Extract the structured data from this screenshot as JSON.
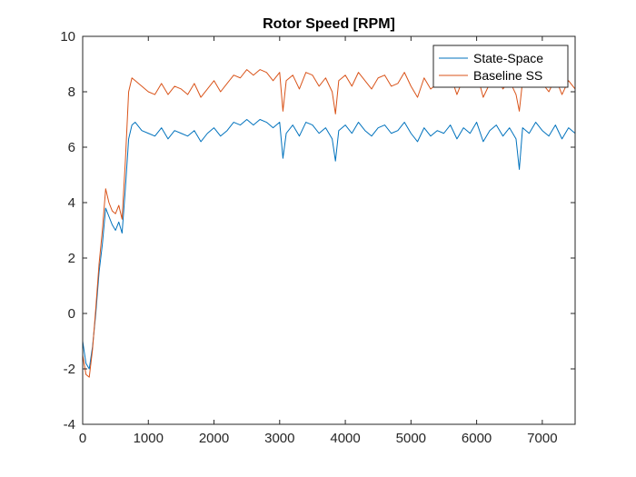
{
  "chart_data": {
    "type": "line",
    "title": "Rotor Speed [RPM]",
    "xlabel": "",
    "ylabel": "",
    "xlim": [
      0,
      7500
    ],
    "ylim": [
      -4,
      10
    ],
    "xticks": [
      0,
      1000,
      2000,
      3000,
      4000,
      5000,
      6000,
      7000
    ],
    "yticks": [
      -4,
      -2,
      0,
      2,
      4,
      6,
      8,
      10
    ],
    "grid": false,
    "legend_position": "top-right",
    "series": [
      {
        "name": "State-Space",
        "color": "#0072BD",
        "x": [
          0,
          50,
          100,
          150,
          200,
          250,
          300,
          350,
          400,
          450,
          500,
          550,
          600,
          650,
          700,
          750,
          800,
          900,
          1000,
          1100,
          1200,
          1300,
          1400,
          1500,
          1600,
          1700,
          1800,
          1900,
          2000,
          2100,
          2200,
          2300,
          2400,
          2500,
          2600,
          2700,
          2800,
          2900,
          3000,
          3050,
          3100,
          3200,
          3300,
          3400,
          3500,
          3600,
          3700,
          3800,
          3850,
          3900,
          4000,
          4100,
          4200,
          4300,
          4400,
          4500,
          4600,
          4700,
          4800,
          4900,
          5000,
          5100,
          5200,
          5300,
          5400,
          5500,
          5600,
          5700,
          5800,
          5900,
          6000,
          6100,
          6200,
          6300,
          6400,
          6500,
          6600,
          6650,
          6700,
          6800,
          6900,
          7000,
          7100,
          7200,
          7300,
          7400,
          7500
        ],
        "y": [
          -1.0,
          -1.8,
          -2.0,
          -1.2,
          0.0,
          1.5,
          2.5,
          3.8,
          3.5,
          3.2,
          3.0,
          3.3,
          2.9,
          4.5,
          6.3,
          6.8,
          6.9,
          6.6,
          6.5,
          6.4,
          6.7,
          6.3,
          6.6,
          6.5,
          6.4,
          6.6,
          6.2,
          6.5,
          6.7,
          6.4,
          6.6,
          6.9,
          6.8,
          7.0,
          6.8,
          7.0,
          6.9,
          6.7,
          6.9,
          5.6,
          6.5,
          6.8,
          6.4,
          6.9,
          6.8,
          6.5,
          6.7,
          6.3,
          5.5,
          6.6,
          6.8,
          6.5,
          6.9,
          6.6,
          6.4,
          6.7,
          6.8,
          6.5,
          6.6,
          6.9,
          6.5,
          6.2,
          6.7,
          6.4,
          6.6,
          6.5,
          6.8,
          6.3,
          6.7,
          6.5,
          6.9,
          6.2,
          6.6,
          6.8,
          6.4,
          6.7,
          6.3,
          5.2,
          6.7,
          6.5,
          6.9,
          6.6,
          6.4,
          6.8,
          6.3,
          6.7,
          6.5
        ]
      },
      {
        "name": "Baseline SS",
        "color": "#D95319",
        "x": [
          0,
          50,
          100,
          150,
          200,
          250,
          300,
          350,
          400,
          450,
          500,
          550,
          600,
          650,
          700,
          750,
          800,
          900,
          1000,
          1100,
          1200,
          1300,
          1400,
          1500,
          1600,
          1700,
          1800,
          1900,
          2000,
          2100,
          2200,
          2300,
          2400,
          2500,
          2600,
          2700,
          2800,
          2900,
          3000,
          3050,
          3100,
          3200,
          3300,
          3400,
          3500,
          3600,
          3700,
          3800,
          3850,
          3900,
          4000,
          4100,
          4200,
          4300,
          4400,
          4500,
          4600,
          4700,
          4800,
          4900,
          5000,
          5100,
          5200,
          5300,
          5400,
          5500,
          5600,
          5700,
          5800,
          5900,
          6000,
          6100,
          6200,
          6300,
          6400,
          6500,
          6600,
          6650,
          6700,
          6800,
          6900,
          7000,
          7100,
          7200,
          7300,
          7400,
          7500
        ],
        "y": [
          -1.5,
          -2.2,
          -2.3,
          -1.3,
          0.2,
          1.8,
          3.0,
          4.5,
          4.0,
          3.7,
          3.6,
          3.9,
          3.4,
          5.5,
          8.0,
          8.5,
          8.4,
          8.2,
          8.0,
          7.9,
          8.3,
          7.9,
          8.2,
          8.1,
          7.9,
          8.3,
          7.8,
          8.1,
          8.4,
          8.0,
          8.3,
          8.6,
          8.5,
          8.8,
          8.6,
          8.8,
          8.7,
          8.4,
          8.7,
          7.3,
          8.4,
          8.6,
          8.1,
          8.7,
          8.6,
          8.2,
          8.5,
          8.0,
          7.2,
          8.4,
          8.6,
          8.2,
          8.7,
          8.4,
          8.1,
          8.5,
          8.6,
          8.2,
          8.3,
          8.7,
          8.2,
          7.8,
          8.5,
          8.1,
          8.3,
          8.2,
          8.6,
          7.9,
          8.5,
          8.2,
          8.7,
          7.8,
          8.3,
          8.6,
          8.1,
          8.4,
          7.9,
          7.3,
          8.4,
          8.2,
          8.6,
          8.3,
          8.0,
          8.5,
          7.9,
          8.4,
          8.1
        ]
      }
    ]
  }
}
